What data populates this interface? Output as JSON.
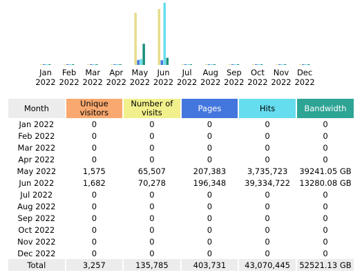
{
  "chart_data": {
    "type": "bar",
    "categories": [
      [
        "Jan",
        "2022"
      ],
      [
        "Feb",
        "2022"
      ],
      [
        "Mar",
        "2022"
      ],
      [
        "Apr",
        "2022"
      ],
      [
        "May",
        "2022"
      ],
      [
        "Jun",
        "2022"
      ],
      [
        "Jul",
        "2022"
      ],
      [
        "Aug",
        "2022"
      ],
      [
        "Sep",
        "2022"
      ],
      [
        "Oct",
        "2022"
      ],
      [
        "Nov",
        "2022"
      ],
      [
        "Dec",
        "2022"
      ]
    ],
    "series": [
      {
        "key": "visits",
        "color": "#e6dc8c",
        "values": [
          0,
          0,
          0,
          0,
          65507,
          70278,
          0,
          0,
          0,
          0,
          0,
          0
        ]
      },
      {
        "key": "pages",
        "color": "#4477dd",
        "values": [
          0,
          0,
          0,
          0,
          207383,
          196348,
          0,
          0,
          0,
          0,
          0,
          0
        ]
      },
      {
        "key": "hits",
        "color": "#66ddee",
        "values": [
          0,
          0,
          0,
          0,
          3735723,
          39334722,
          0,
          0,
          0,
          0,
          0,
          0
        ]
      },
      {
        "key": "bandwidth",
        "color": "#1a8f7a",
        "values": [
          0,
          0,
          0,
          0,
          39241.05,
          13280.08,
          0,
          0,
          0,
          0,
          0,
          0
        ]
      }
    ],
    "grid": false,
    "legend": "none"
  },
  "table": {
    "headers": {
      "month": "Month",
      "unique_visitors": [
        "Unique",
        "visitors"
      ],
      "number_of_visits": [
        "Number of",
        "visits"
      ],
      "pages": "Pages",
      "hits": "Hits",
      "bandwidth": "Bandwidth"
    },
    "rows": [
      {
        "month": "Jan 2022",
        "uv": "0",
        "nv": "0",
        "pg": "0",
        "ht": "0",
        "bw": "0"
      },
      {
        "month": "Feb 2022",
        "uv": "0",
        "nv": "0",
        "pg": "0",
        "ht": "0",
        "bw": "0"
      },
      {
        "month": "Mar 2022",
        "uv": "0",
        "nv": "0",
        "pg": "0",
        "ht": "0",
        "bw": "0"
      },
      {
        "month": "Apr 2022",
        "uv": "0",
        "nv": "0",
        "pg": "0",
        "ht": "0",
        "bw": "0"
      },
      {
        "month": "May 2022",
        "uv": "1,575",
        "nv": "65,507",
        "pg": "207,383",
        "ht": "3,735,723",
        "bw": "39241.05 GB"
      },
      {
        "month": "Jun 2022",
        "uv": "1,682",
        "nv": "70,278",
        "pg": "196,348",
        "ht": "39,334,722",
        "bw": "13280.08 GB"
      },
      {
        "month": "Jul 2022",
        "uv": "0",
        "nv": "0",
        "pg": "0",
        "ht": "0",
        "bw": "0"
      },
      {
        "month": "Aug 2022",
        "uv": "0",
        "nv": "0",
        "pg": "0",
        "ht": "0",
        "bw": "0"
      },
      {
        "month": "Sep 2022",
        "uv": "0",
        "nv": "0",
        "pg": "0",
        "ht": "0",
        "bw": "0"
      },
      {
        "month": "Oct 2022",
        "uv": "0",
        "nv": "0",
        "pg": "0",
        "ht": "0",
        "bw": "0"
      },
      {
        "month": "Nov 2022",
        "uv": "0",
        "nv": "0",
        "pg": "0",
        "ht": "0",
        "bw": "0"
      },
      {
        "month": "Dec 2022",
        "uv": "0",
        "nv": "0",
        "pg": "0",
        "ht": "0",
        "bw": "0"
      }
    ],
    "total": {
      "label": "Total",
      "uv": "3,257",
      "nv": "135,785",
      "pg": "403,731",
      "ht": "43,070,445",
      "bw": "52521.13 GB"
    }
  }
}
